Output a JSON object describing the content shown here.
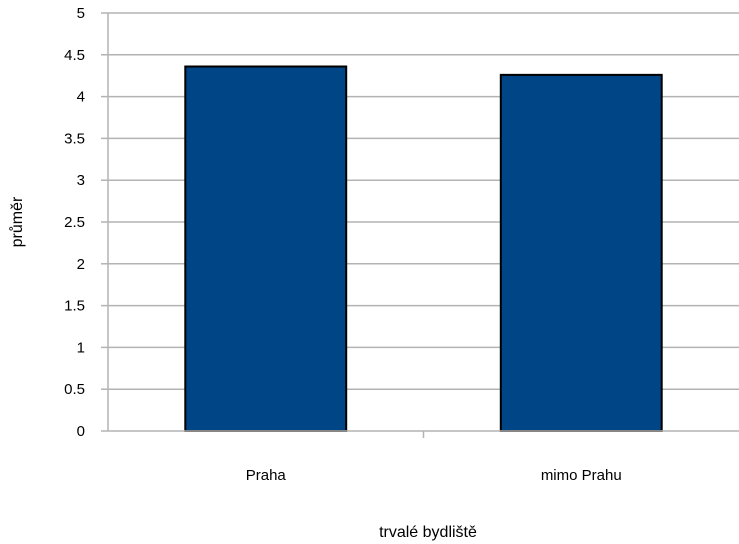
{
  "chart_data": {
    "type": "bar",
    "categories": [
      "Praha",
      "mimo Prahu"
    ],
    "values": [
      4.36,
      4.26
    ],
    "xlabel": "trvalé bydliště",
    "ylabel": "průměr",
    "ylim": [
      0,
      5
    ],
    "yticks": [
      "0",
      "0.5",
      "1",
      "1.5",
      "2",
      "2.5",
      "3",
      "3.5",
      "4",
      "4.5",
      "5"
    ],
    "grid": true,
    "bar_color": "#004586",
    "bar_border_color": "#000000",
    "grid_color": "#b3b3b3"
  }
}
